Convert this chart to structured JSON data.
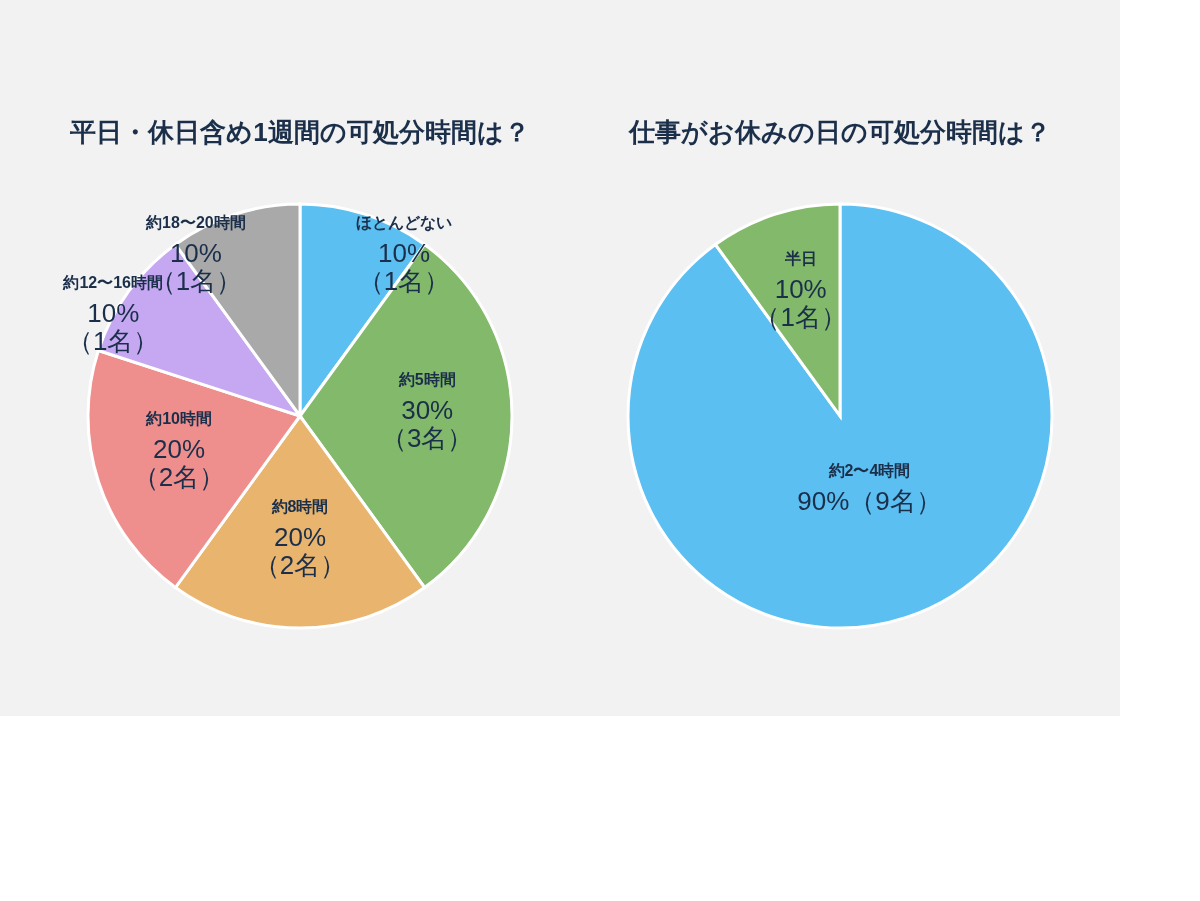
{
  "chart_data": [
    {
      "type": "pie",
      "title": "平日・休日含め1週間の可処分時間は？",
      "categories": [
        "ほとんどない",
        "約5時間",
        "約8時間",
        "約10時間",
        "約12〜16時間",
        "約18〜20時間"
      ],
      "values": [
        10,
        30,
        20,
        20,
        10,
        10
      ],
      "colors": [
        "#5bbff2",
        "#82b96a",
        "#e9b46d",
        "#ef8f8d",
        "#c6a8f2",
        "#a9a9a9"
      ],
      "value_labels": [
        "10%\n（1名）",
        "30%\n（3名）",
        "20%\n（2名）",
        "20%\n（2名）",
        "10%\n（1名）",
        "10%\n（1名）"
      ]
    },
    {
      "type": "pie",
      "title": "仕事がお休みの日の可処分時間は？",
      "categories": [
        "約2〜4時間",
        "半日"
      ],
      "values": [
        90,
        10
      ],
      "colors": [
        "#5bbff2",
        "#82b96a"
      ],
      "value_labels": [
        "90%（9名）",
        "10%\n（1名）"
      ]
    }
  ]
}
